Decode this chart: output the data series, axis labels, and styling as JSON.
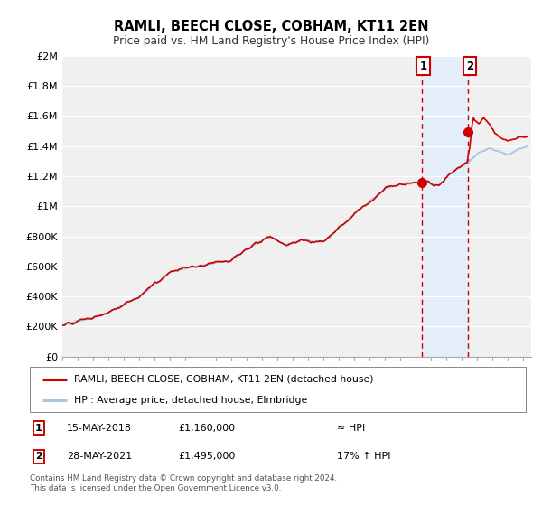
{
  "title": "RAMLI, BEECH CLOSE, COBHAM, KT11 2EN",
  "subtitle": "Price paid vs. HM Land Registry's House Price Index (HPI)",
  "ylim": [
    0,
    2000000
  ],
  "yticks": [
    0,
    200000,
    400000,
    600000,
    800000,
    1000000,
    1200000,
    1400000,
    1600000,
    1800000,
    2000000
  ],
  "ytick_labels": [
    "£0",
    "£200K",
    "£400K",
    "£600K",
    "£800K",
    "£1M",
    "£1.2M",
    "£1.4M",
    "£1.6M",
    "£1.8M",
    "£2M"
  ],
  "xlim_start": 1995.0,
  "xlim_end": 2025.5,
  "hpi_color": "#a8c4e0",
  "price_color": "#cc0000",
  "marker_color": "#cc0000",
  "vline_color": "#cc0000",
  "shade_color": "#ddeeff",
  "point1_x": 2018.37,
  "point1_y": 1160000,
  "point2_x": 2021.41,
  "point2_y": 1495000,
  "legend_label_red": "RAMLI, BEECH CLOSE, COBHAM, KT11 2EN (detached house)",
  "legend_label_blue": "HPI: Average price, detached house, Elmbridge",
  "note1_date": "15-MAY-2018",
  "note1_price": "£1,160,000",
  "note1_hpi": "≈ HPI",
  "note2_date": "28-MAY-2021",
  "note2_price": "£1,495,000",
  "note2_hpi": "17% ↑ HPI",
  "footer": "Contains HM Land Registry data © Crown copyright and database right 2024.\nThis data is licensed under the Open Government Licence v3.0.",
  "background_color": "#ffffff",
  "plot_bg_color": "#f0f0f0"
}
